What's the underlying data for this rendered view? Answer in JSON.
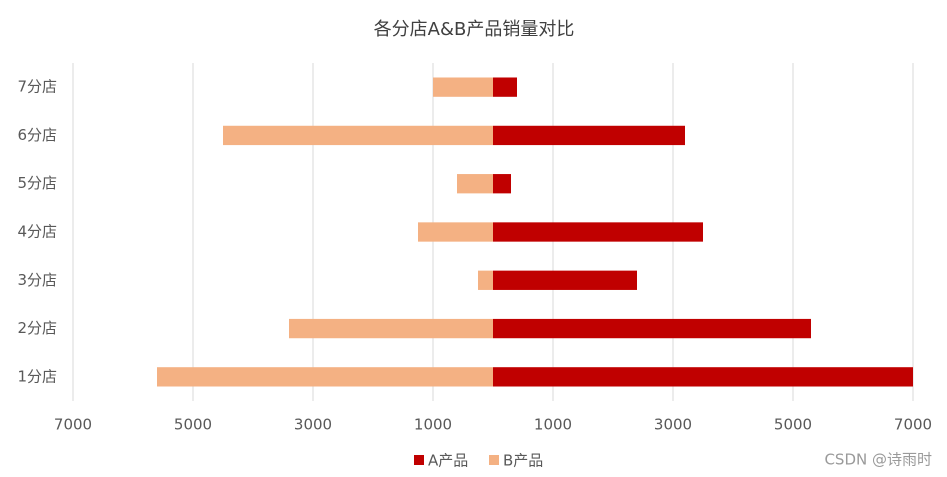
{
  "chart_data": {
    "type": "bar",
    "orientation": "horizontal",
    "title": "各分店A&B产品销量对比",
    "categories": [
      "1分店",
      "2分店",
      "3分店",
      "4分店",
      "5分店",
      "6分店",
      "7分店"
    ],
    "series": [
      {
        "name": "A产品",
        "color": "#c00000",
        "values": [
          7000,
          5300,
          2400,
          3500,
          300,
          3200,
          400
        ]
      },
      {
        "name": "B产品",
        "color": "#f4b183",
        "values": [
          -5600,
          -3400,
          -250,
          -1250,
          -600,
          -4500,
          -1000
        ]
      }
    ],
    "xlim": [
      -7000,
      7000
    ],
    "xticks": [
      {
        "value": -7000,
        "label": "7000"
      },
      {
        "value": -5000,
        "label": "5000"
      },
      {
        "value": -3000,
        "label": "3000"
      },
      {
        "value": -1000,
        "label": "1000"
      },
      1000,
      3000,
      5000,
      7000
    ],
    "grid": true,
    "legend": "bottom",
    "watermark": "CSDN @诗雨时"
  }
}
